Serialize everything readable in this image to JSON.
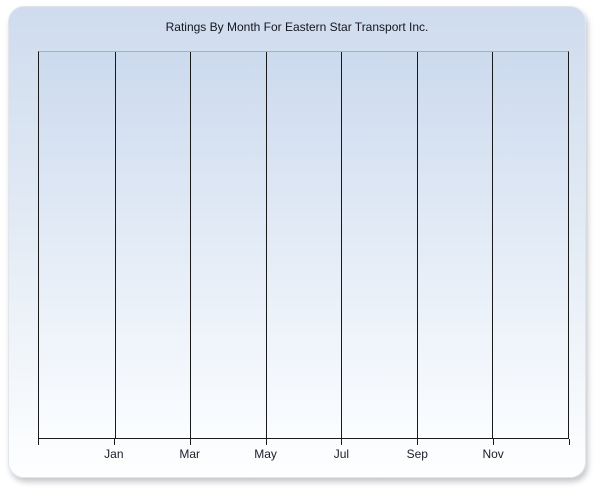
{
  "chart_data": {
    "type": "bar",
    "title": "Ratings By Month For Eastern Star Transport Inc.",
    "x_tick_labels": [
      "Jan",
      "Mar",
      "May",
      "Jul",
      "Sep",
      "Nov"
    ],
    "categories": [],
    "series": [],
    "xlabel": "",
    "ylabel": "",
    "y_tick_labels": [],
    "grid": {
      "vertical": true,
      "horizontal": false
    },
    "legend": "none",
    "plot_is_empty": true
  },
  "colors": {
    "panel_top": "#cfdcee",
    "panel_bottom": "#feffff",
    "plot_top": "#ccdaee",
    "plot_bottom": "#fbfdff",
    "gridline": "#1a1a1a",
    "axis_line": "#1a1a1a",
    "plot_border_top": "#a8b0bc",
    "title_text": "#15151f",
    "label_text": "#1c1c28"
  }
}
